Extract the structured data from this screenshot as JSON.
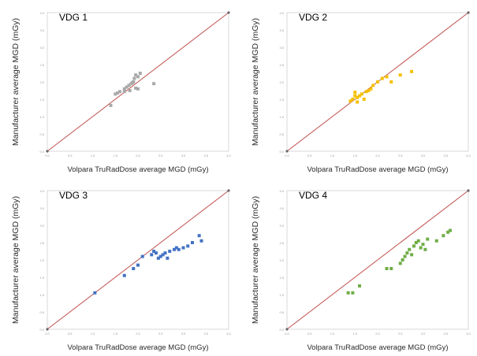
{
  "chart_data": [
    {
      "type": "scatter",
      "title": "VDG 1",
      "xlabel": "Volpara TruRadDose average MGD (mGy)",
      "ylabel": "Manufacturer average MGD (mGy)",
      "xlim": [
        0,
        4.0
      ],
      "ylim": [
        0,
        4.0
      ],
      "point_color": "#a9a9a9",
      "line_color": "#c0504d",
      "identity_line": [
        [
          0,
          0
        ],
        [
          4.0,
          4.0
        ]
      ],
      "series": [
        {
          "x": [
            1.4,
            1.5,
            1.6,
            1.7,
            1.75,
            1.8,
            1.85,
            1.88,
            1.9,
            1.92,
            1.95,
            2.0,
            2.05,
            1.82,
            2.0,
            2.35,
            1.55,
            1.7,
            1.95
          ],
          "y": [
            1.32,
            1.65,
            1.72,
            1.8,
            1.85,
            1.9,
            1.95,
            1.98,
            2.0,
            2.1,
            2.2,
            2.15,
            2.25,
            1.75,
            1.8,
            1.95,
            1.68,
            1.72,
            1.82
          ]
        }
      ]
    },
    {
      "type": "scatter",
      "title": "VDG 2",
      "xlabel": "Volpara TruRadDose average MGD (mGy)",
      "ylabel": "Manufacturer average MGD (mGy)",
      "xlim": [
        0,
        4.0
      ],
      "ylim": [
        0,
        4.0
      ],
      "point_color": "#f5c000",
      "line_color": "#c0504d",
      "identity_line": [
        [
          0,
          0
        ],
        [
          4.0,
          4.0
        ]
      ],
      "series": [
        {
          "x": [
            1.4,
            1.45,
            1.5,
            1.55,
            1.6,
            1.5,
            1.65,
            1.7,
            1.8,
            1.85,
            1.9,
            2.0,
            2.1,
            2.2,
            2.3,
            2.5,
            2.75,
            1.55,
            1.75
          ],
          "y": [
            1.45,
            1.5,
            1.6,
            1.55,
            1.6,
            1.7,
            1.65,
            1.5,
            1.75,
            1.8,
            1.9,
            2.0,
            2.1,
            2.15,
            2.0,
            2.2,
            2.3,
            1.42,
            1.72
          ]
        }
      ]
    },
    {
      "type": "scatter",
      "title": "VDG 3",
      "xlabel": "Volpara TruRadDose average MGD (mGy)",
      "ylabel": "Manufacturer average MGD (mGy)",
      "xlim": [
        0,
        4.0
      ],
      "ylim": [
        0,
        4.0
      ],
      "point_color": "#4472c4",
      "line_color": "#c0504d",
      "identity_line": [
        [
          0,
          0
        ],
        [
          4.0,
          4.0
        ]
      ],
      "series": [
        {
          "x": [
            1.05,
            1.7,
            1.9,
            2.0,
            2.1,
            2.3,
            2.4,
            2.45,
            2.5,
            2.55,
            2.6,
            2.7,
            2.8,
            2.85,
            2.9,
            3.0,
            3.1,
            3.2,
            3.35,
            3.4,
            2.35,
            2.65
          ],
          "y": [
            1.05,
            1.55,
            1.75,
            1.85,
            2.1,
            2.15,
            2.2,
            2.05,
            2.1,
            2.15,
            2.2,
            2.25,
            2.3,
            2.35,
            2.3,
            2.35,
            2.4,
            2.5,
            2.7,
            2.55,
            2.25,
            2.05
          ]
        }
      ]
    },
    {
      "type": "scatter",
      "title": "VDG 4",
      "xlabel": "Volpara TruRadDose average MGD (mGy)",
      "ylabel": "Manufacturer average MGD (mGy)",
      "xlim": [
        0,
        4.0
      ],
      "ylim": [
        0,
        4.0
      ],
      "point_color": "#70ad47",
      "line_color": "#c0504d",
      "identity_line": [
        [
          0,
          0
        ],
        [
          4.0,
          4.0
        ]
      ],
      "series": [
        {
          "x": [
            1.35,
            1.45,
            1.6,
            2.2,
            2.3,
            2.5,
            2.55,
            2.6,
            2.65,
            2.7,
            2.75,
            2.8,
            2.85,
            2.9,
            3.0,
            3.05,
            3.1,
            3.3,
            3.45,
            3.55,
            3.6,
            2.95
          ],
          "y": [
            1.05,
            1.05,
            1.25,
            1.75,
            1.75,
            1.9,
            2.0,
            2.1,
            2.2,
            2.3,
            2.15,
            2.4,
            2.5,
            2.55,
            2.45,
            2.3,
            2.6,
            2.55,
            2.7,
            2.8,
            2.85,
            2.35
          ]
        }
      ]
    }
  ]
}
